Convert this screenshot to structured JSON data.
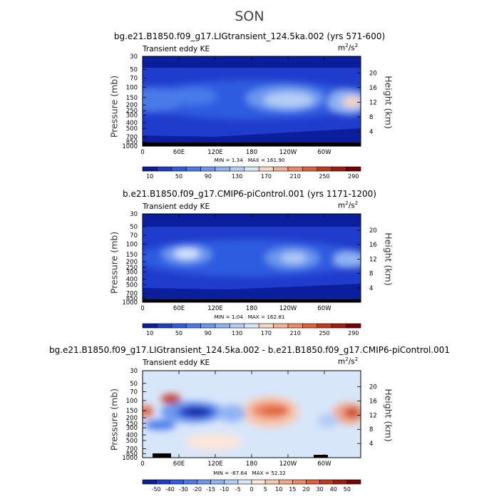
{
  "season": "SON",
  "panels": [
    {
      "title": "bg.e21.B1850.f09_g17.LIGtransient_124.5ka.002 (yrs 571-600)",
      "variable_label": "Transient eddy KE",
      "units_base": "m",
      "units_exp1": "2",
      "units_mid": "/s",
      "units_exp2": "2",
      "min_label": "MIN =",
      "min_value": "1.34",
      "max_label": "MAX =",
      "max_value": "161.90",
      "colorbar_labels": [
        "10",
        "50",
        "90",
        "130",
        "170",
        "210",
        "250",
        "290"
      ]
    },
    {
      "title": "b.e21.B1850.f09_g17.CMIP6-piControl.001 (yrs 1171-1200)",
      "variable_label": "Transient eddy KE",
      "units_base": "m",
      "units_exp1": "2",
      "units_mid": "/s",
      "units_exp2": "2",
      "min_label": "MIN =",
      "min_value": "1.04",
      "max_label": "MAX =",
      "max_value": "162.81",
      "colorbar_labels": [
        "10",
        "50",
        "90",
        "130",
        "170",
        "210",
        "250",
        "290"
      ]
    },
    {
      "title": "bg.e21.B1850.f09_g17.LIGtransient_124.5ka.002 - b.e21.B1850.f09_g17.CMIP6-piControl.001",
      "variable_label": "Transient eddy KE",
      "units_base": "m",
      "units_exp1": "2",
      "units_mid": "/s",
      "units_exp2": "2",
      "min_label": "MIN =",
      "min_value": "-67.64",
      "max_label": "MAX =",
      "max_value": "52.32",
      "colorbar_labels": [
        "-50",
        "-40",
        "-30",
        "-20",
        "-15",
        "-10",
        "-5",
        "0",
        "5",
        "10",
        "15",
        "20",
        "30",
        "40",
        "50"
      ]
    }
  ],
  "axes": {
    "ylabel_left": "Pressure (mb)",
    "ylabel_right": "Height (km)",
    "pressure_ticks": [
      "30",
      "50",
      "70",
      "100",
      "150",
      "200",
      "250",
      "300",
      "400",
      "500",
      "700",
      "850",
      "1000"
    ],
    "height_ticks": [
      "20",
      "16",
      "12",
      "8",
      "4"
    ],
    "lon_ticks": [
      "0",
      "60E",
      "120E",
      "180",
      "120W",
      "60W"
    ]
  },
  "colors": {
    "seq_palette": [
      "#0b1f9c",
      "#1f3ccc",
      "#2f5ce0",
      "#4a7aea",
      "#6b97ef",
      "#8fb3f3",
      "#b3cdf6",
      "#d8e6fa",
      "#f6d6c6",
      "#f2b296",
      "#ec8a66",
      "#e0603a",
      "#c23a1c",
      "#a01c0c",
      "#780000"
    ],
    "div_palette": [
      "#0b1f9c",
      "#1f3ccc",
      "#2f5ce0",
      "#4a7aea",
      "#6b97ef",
      "#8fb3f3",
      "#b3cdf6",
      "#d8e6fa",
      "#fbe6da",
      "#f6c9b3",
      "#f2a98a",
      "#ec8a66",
      "#e0603a",
      "#c23a1c",
      "#a01c0c",
      "#780000"
    ]
  },
  "chart_data": [
    {
      "type": "heatmap",
      "title": "bg.e21.B1850.f09_g17.LIGtransient_124.5ka.002 (yrs 571-600)",
      "variable": "Transient eddy KE",
      "units": "m2/s2",
      "x": "longitude (0 to 360)",
      "y": "pressure (mb, 30 to 1000, log)",
      "levels": [
        10,
        30,
        50,
        70,
        90,
        110,
        130,
        150,
        170,
        190,
        210,
        230,
        250,
        270,
        290
      ],
      "min": 1.34,
      "max": 161.9,
      "features": [
        {
          "lon": 20,
          "pressure": 200,
          "value": 110
        },
        {
          "lon": 95,
          "pressure": 150,
          "value": 90
        },
        {
          "lon": 210,
          "pressure": 170,
          "value": 150
        },
        {
          "lon": 345,
          "pressure": 200,
          "value": 162
        }
      ]
    },
    {
      "type": "heatmap",
      "title": "b.e21.B1850.f09_g17.CMIP6-piControl.001 (yrs 1171-1200)",
      "variable": "Transient eddy KE",
      "units": "m2/s2",
      "levels": [
        10,
        30,
        50,
        70,
        90,
        110,
        130,
        150,
        170,
        190,
        210,
        230,
        250,
        270,
        290
      ],
      "min": 1.04,
      "max": 162.81,
      "features": [
        {
          "lon": 20,
          "pressure": 200,
          "value": 90
        },
        {
          "lon": 75,
          "pressure": 150,
          "value": 150
        },
        {
          "lon": 220,
          "pressure": 200,
          "value": 140
        },
        {
          "lon": 345,
          "pressure": 200,
          "value": 130
        }
      ]
    },
    {
      "type": "heatmap",
      "title": "bg.e21.B1850.f09_g17.LIGtransient_124.5ka.002 - b.e21.B1850.f09_g17.CMIP6-piControl.001",
      "variable": "Transient eddy KE",
      "units": "m2/s2",
      "levels": [
        -50,
        -40,
        -30,
        -20,
        -15,
        -10,
        -5,
        0,
        5,
        10,
        15,
        20,
        30,
        40,
        50
      ],
      "min": -67.64,
      "max": 52.32,
      "features": [
        {
          "lon": 5,
          "pressure": 150,
          "value": 35
        },
        {
          "lon": 45,
          "pressure": 110,
          "value": 40
        },
        {
          "lon": 35,
          "pressure": 200,
          "value": -45
        },
        {
          "lon": 80,
          "pressure": 170,
          "value": -60
        },
        {
          "lon": 120,
          "pressure": 150,
          "value": -25
        },
        {
          "lon": 210,
          "pressure": 170,
          "value": 40
        },
        {
          "lon": 260,
          "pressure": 200,
          "value": 10
        },
        {
          "lon": 345,
          "pressure": 170,
          "value": 45
        },
        {
          "lon": 300,
          "pressure": 200,
          "value": -15
        }
      ]
    }
  ]
}
